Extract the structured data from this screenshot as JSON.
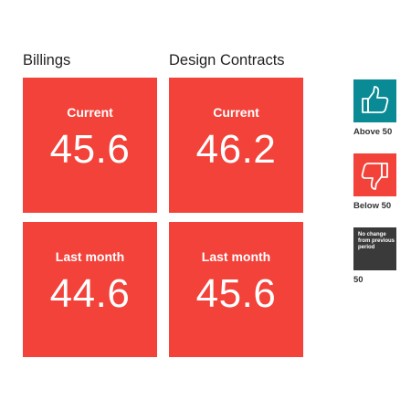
{
  "columns": [
    {
      "title": "Billings",
      "current_label": "Current",
      "current_value": "45.6",
      "last_label": "Last month",
      "last_value": "44.6"
    },
    {
      "title": "Design Contracts",
      "current_label": "Current",
      "current_value": "46.2",
      "last_label": "Last month",
      "last_value": "45.6"
    }
  ],
  "legend": {
    "above": {
      "caption": "Above 50",
      "color": "#0a8a94",
      "icon": "thumbs-up-icon"
    },
    "below": {
      "caption": "Below 50",
      "color": "#f2423a",
      "icon": "thumbs-down-icon"
    },
    "nochange": {
      "text": "No change from previous period",
      "caption": "50",
      "color": "#3a3a3a"
    }
  },
  "colors": {
    "tile": "#f2423a"
  }
}
